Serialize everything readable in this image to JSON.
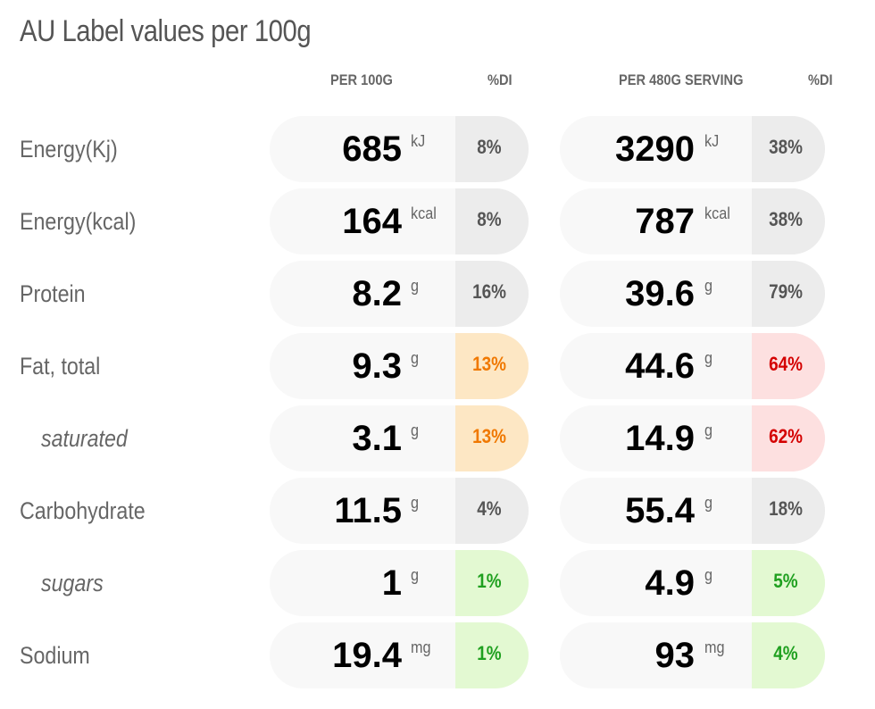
{
  "title": "AU Label values per 100g",
  "headers": {
    "per100": "PER 100G",
    "di1": "%DI",
    "serving": "PER 480G SERVING",
    "di2": "%DI"
  },
  "colors": {
    "neutral": "#ececec",
    "orange": "#fde7c4",
    "red": "#fde0e0",
    "green": "#e3f9d2"
  },
  "rows": [
    {
      "label": "Energy(Kj)",
      "sub": false,
      "v1": "685",
      "u1": "kJ",
      "d1": "8%",
      "c1": "neutral",
      "v2": "3290",
      "u2": "kJ",
      "d2": "38%",
      "c2": "neutral"
    },
    {
      "label": "Energy(kcal)",
      "sub": false,
      "v1": "164",
      "u1": "kcal",
      "d1": "8%",
      "c1": "neutral",
      "v2": "787",
      "u2": "kcal",
      "d2": "38%",
      "c2": "neutral"
    },
    {
      "label": "Protein",
      "sub": false,
      "v1": "8.2",
      "u1": "g",
      "d1": "16%",
      "c1": "neutral",
      "v2": "39.6",
      "u2": "g",
      "d2": "79%",
      "c2": "neutral"
    },
    {
      "label": "Fat, total",
      "sub": false,
      "v1": "9.3",
      "u1": "g",
      "d1": "13%",
      "c1": "orange",
      "v2": "44.6",
      "u2": "g",
      "d2": "64%",
      "c2": "red"
    },
    {
      "label": "saturated",
      "sub": true,
      "v1": "3.1",
      "u1": "g",
      "d1": "13%",
      "c1": "orange",
      "v2": "14.9",
      "u2": "g",
      "d2": "62%",
      "c2": "red"
    },
    {
      "label": "Carbohydrate",
      "sub": false,
      "v1": "11.5",
      "u1": "g",
      "d1": "4%",
      "c1": "neutral",
      "v2": "55.4",
      "u2": "g",
      "d2": "18%",
      "c2": "neutral"
    },
    {
      "label": "sugars",
      "sub": true,
      "v1": "1",
      "u1": "g",
      "d1": "1%",
      "c1": "green",
      "v2": "4.9",
      "u2": "g",
      "d2": "5%",
      "c2": "green"
    },
    {
      "label": "Sodium",
      "sub": false,
      "v1": "19.4",
      "u1": "mg",
      "d1": "1%",
      "c1": "green",
      "v2": "93",
      "u2": "mg",
      "d2": "4%",
      "c2": "green"
    }
  ]
}
